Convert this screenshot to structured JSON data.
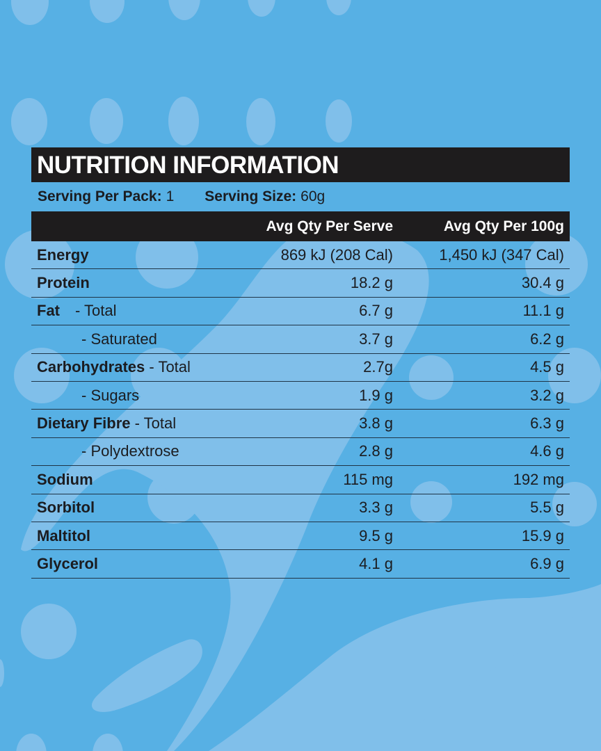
{
  "colors": {
    "background": "#57b0e4",
    "bubble": "#80bfea",
    "bar": "#1e1c1d",
    "text": "#1b1c20",
    "rule": "#1f3446"
  },
  "panel": {
    "title": "NUTRITION INFORMATION",
    "serving_per_pack_label": "Serving Per Pack:",
    "serving_per_pack_value": "1",
    "serving_size_label": "Serving Size:",
    "serving_size_value": "60g",
    "columns": {
      "name": "",
      "per_serve": "Avg Qty Per Serve",
      "per_100g": "Avg Qty Per 100g"
    },
    "rows": [
      {
        "name": "Energy",
        "sub": "",
        "indent": false,
        "per_serve": "869 kJ (208 Cal)",
        "per_100g": "1,450 kJ (347 Cal)"
      },
      {
        "name": "Protein",
        "sub": "",
        "indent": false,
        "per_serve": "18.2 g",
        "per_100g": "30.4 g"
      },
      {
        "name": "Fat",
        "sub": "- Total",
        "indent": false,
        "per_serve": "6.7 g",
        "per_100g": "11.1 g"
      },
      {
        "name": "",
        "sub": "- Saturated",
        "indent": true,
        "per_serve": "3.7 g",
        "per_100g": "6.2 g"
      },
      {
        "name": "Carbohydrates",
        "sub": "- Total",
        "indent": false,
        "per_serve": "2.7g",
        "per_100g": "4.5 g"
      },
      {
        "name": "",
        "sub": "- Sugars",
        "indent": true,
        "per_serve": "1.9 g",
        "per_100g": "3.2 g"
      },
      {
        "name": "Dietary Fibre",
        "sub": "- Total",
        "indent": false,
        "per_serve": "3.8 g",
        "per_100g": "6.3 g"
      },
      {
        "name": "",
        "sub": "- Polydextrose",
        "indent": true,
        "per_serve": "2.8 g",
        "per_100g": "4.6 g"
      },
      {
        "name": "Sodium",
        "sub": "",
        "indent": false,
        "per_serve": "115 mg",
        "per_100g": "192 mg"
      },
      {
        "name": "Sorbitol",
        "sub": "",
        "indent": false,
        "per_serve": "3.3 g",
        "per_100g": "5.5 g"
      },
      {
        "name": "Maltitol",
        "sub": "",
        "indent": false,
        "per_serve": "9.5 g",
        "per_100g": "15.9 g"
      },
      {
        "name": "Glycerol",
        "sub": "",
        "indent": false,
        "per_serve": "4.1 g",
        "per_100g": "6.9 g"
      }
    ]
  }
}
